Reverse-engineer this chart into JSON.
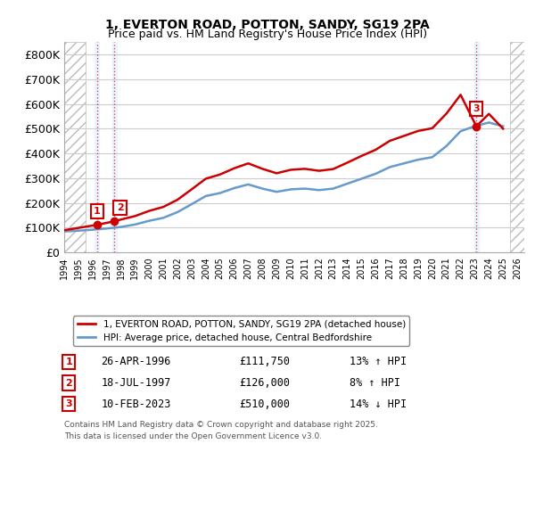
{
  "title_line1": "1, EVERTON ROAD, POTTON, SANDY, SG19 2PA",
  "title_line2": "Price paid vs. HM Land Registry's House Price Index (HPI)",
  "property_label": "1, EVERTON ROAD, POTTON, SANDY, SG19 2PA (detached house)",
  "hpi_label": "HPI: Average price, detached house, Central Bedfordshire",
  "property_color": "#cc0000",
  "hpi_color": "#6699cc",
  "background_stripe_color": "#ddeeff",
  "hatch_color": "#cccccc",
  "ylim": [
    0,
    850000
  ],
  "yticks": [
    0,
    100000,
    200000,
    300000,
    400000,
    500000,
    600000,
    700000,
    800000
  ],
  "ytick_labels": [
    "£0",
    "£100K",
    "£200K",
    "£300K",
    "£400K",
    "£500K",
    "£600K",
    "£700K",
    "£800K"
  ],
  "xlim_start": 1994.0,
  "xlim_end": 2026.5,
  "transactions": [
    {
      "num": 1,
      "date": "26-APR-1996",
      "price": 111750,
      "pct": "13%",
      "dir": "↑",
      "year": 1996.32
    },
    {
      "num": 2,
      "date": "18-JUL-1997",
      "price": 126000,
      "pct": "8%",
      "dir": "↑",
      "year": 1997.54
    },
    {
      "num": 3,
      "date": "10-FEB-2023",
      "price": 510000,
      "pct": "14%",
      "dir": "↓",
      "year": 2023.11
    }
  ],
  "footer_text": "Contains HM Land Registry data © Crown copyright and database right 2025.\nThis data is licensed under the Open Government Licence v3.0.",
  "hpi_years": [
    1994,
    1995,
    1996,
    1997,
    1998,
    1999,
    2000,
    2001,
    2002,
    2003,
    2004,
    2005,
    2006,
    2007,
    2008,
    2009,
    2010,
    2011,
    2012,
    2013,
    2014,
    2015,
    2016,
    2017,
    2018,
    2019,
    2020,
    2021,
    2022,
    2023,
    2024,
    2025
  ],
  "hpi_values": [
    85000,
    88000,
    92000,
    97000,
    103000,
    113000,
    128000,
    140000,
    163000,
    195000,
    228000,
    240000,
    260000,
    275000,
    258000,
    245000,
    255000,
    258000,
    252000,
    258000,
    278000,
    298000,
    318000,
    345000,
    360000,
    375000,
    385000,
    430000,
    490000,
    510000,
    525000,
    510000
  ],
  "prop_years": [
    1994,
    1996.32,
    1997.54,
    1998,
    1999,
    2000,
    2001,
    2002,
    2003,
    2004,
    2005,
    2006,
    2007,
    2008,
    2009,
    2010,
    2011,
    2012,
    2013,
    2014,
    2015,
    2016,
    2017,
    2018,
    2019,
    2020,
    2021,
    2022,
    2023.11,
    2024,
    2025
  ],
  "prop_values": [
    90000,
    111750,
    126000,
    133000,
    147000,
    168000,
    184000,
    213000,
    255000,
    298000,
    315000,
    340000,
    360000,
    338000,
    320000,
    334000,
    338000,
    330000,
    337000,
    363000,
    390000,
    415000,
    451000,
    471000,
    491000,
    502000,
    561000,
    637000,
    510000,
    560000,
    500000
  ]
}
